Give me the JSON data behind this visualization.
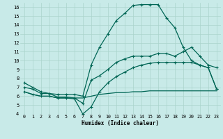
{
  "bg_color": "#c8eae8",
  "grid_color": "#aad4cc",
  "line_color": "#006655",
  "xlabel": "Humidex (Indice chaleur)",
  "xlim": [
    -0.5,
    23.5
  ],
  "ylim": [
    4,
    16.5
  ],
  "xticks": [
    0,
    1,
    2,
    3,
    4,
    5,
    6,
    7,
    8,
    9,
    10,
    11,
    12,
    13,
    14,
    15,
    16,
    17,
    18,
    19,
    20,
    21,
    22,
    23
  ],
  "yticks": [
    4,
    5,
    6,
    7,
    8,
    9,
    10,
    11,
    12,
    13,
    14,
    15,
    16
  ],
  "line1_x": [
    0,
    1,
    2,
    3,
    4,
    5,
    6,
    7,
    8,
    9,
    10,
    11,
    12,
    13,
    14,
    15,
    16,
    17,
    18,
    19,
    20,
    21,
    22,
    23
  ],
  "line1_y": [
    7.5,
    7.0,
    6.5,
    6.3,
    6.2,
    6.2,
    6.2,
    6.0,
    9.5,
    11.5,
    13.0,
    14.5,
    15.3,
    16.2,
    16.3,
    16.3,
    16.3,
    14.8,
    13.7,
    11.5,
    10.0,
    9.5,
    9.2,
    6.8
  ],
  "line2_x": [
    0,
    1,
    2,
    3,
    4,
    5,
    6,
    7,
    8,
    9,
    10,
    11,
    12,
    13,
    14,
    15,
    16,
    17,
    18,
    19,
    20,
    21,
    22,
    23
  ],
  "line2_y": [
    7.0,
    6.8,
    6.3,
    6.3,
    5.9,
    5.9,
    5.8,
    5.2,
    7.8,
    8.3,
    9.0,
    9.8,
    10.2,
    10.5,
    10.5,
    10.5,
    10.8,
    10.8,
    10.5,
    11.0,
    11.5,
    10.5,
    9.5,
    9.2
  ],
  "line3_x": [
    0,
    1,
    2,
    3,
    4,
    5,
    6,
    7,
    8,
    9,
    10,
    11,
    12,
    13,
    14,
    15,
    16,
    17,
    18,
    19,
    20,
    21,
    22,
    23
  ],
  "line3_y": [
    6.5,
    6.2,
    6.0,
    6.0,
    5.8,
    5.8,
    5.7,
    4.0,
    4.8,
    6.5,
    7.5,
    8.2,
    8.7,
    9.2,
    9.5,
    9.7,
    9.8,
    9.8,
    9.8,
    9.8,
    9.8,
    9.5,
    9.2,
    6.8
  ],
  "line4_x": [
    0,
    1,
    2,
    3,
    4,
    5,
    6,
    7,
    8,
    9,
    10,
    11,
    12,
    13,
    14,
    15,
    16,
    17,
    18,
    19,
    20,
    21,
    22,
    23
  ],
  "line4_y": [
    6.5,
    6.2,
    6.0,
    6.0,
    5.8,
    5.8,
    5.8,
    5.8,
    6.0,
    6.2,
    6.3,
    6.4,
    6.4,
    6.5,
    6.5,
    6.6,
    6.6,
    6.6,
    6.6,
    6.6,
    6.6,
    6.6,
    6.6,
    6.6
  ]
}
